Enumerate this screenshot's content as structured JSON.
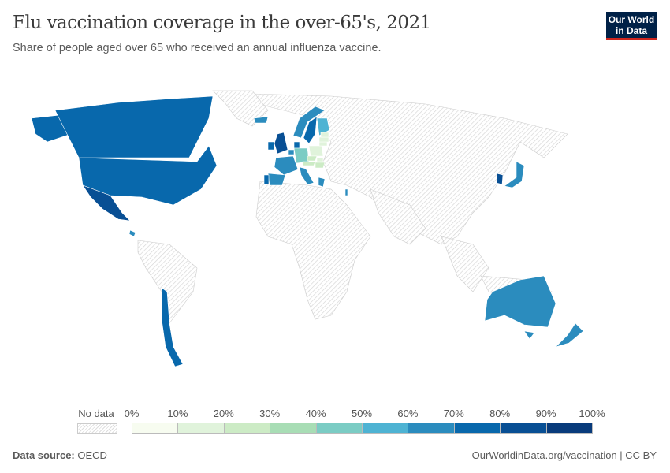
{
  "header": {
    "title": "Flu vaccination coverage in the over-65's, 2021",
    "subtitle": "Share of people aged over 65 who received an annual influenza vaccine.",
    "logo": "Our World in Data"
  },
  "legend": {
    "no_data_label": "No data",
    "ticks": [
      "0%",
      "10%",
      "20%",
      "30%",
      "40%",
      "50%",
      "60%",
      "70%",
      "80%",
      "90%",
      "100%"
    ],
    "colors": [
      "#f7fcf0",
      "#e0f3db",
      "#ccebc5",
      "#a8ddb5",
      "#7bccc4",
      "#4eb3d3",
      "#2b8cbe",
      "#0868ac",
      "#084f94",
      "#083b7b"
    ],
    "no_data_color": "#e8e8e8"
  },
  "chart_data": {
    "type": "choropleth",
    "unit": "%",
    "year": 2021,
    "values": {
      "United States": 70,
      "Canada": 70,
      "Mexico": 82,
      "Costa Rica": 65,
      "Chile": 75,
      "Australia": 65,
      "New Zealand": 67,
      "Japan": 65,
      "South Korea": 85,
      "United Kingdom": 82,
      "Ireland": 75,
      "Iceland": 60,
      "Norway": 65,
      "Sweden": 70,
      "Finland": 55,
      "Denmark": 75,
      "Germany": 45,
      "Netherlands": 65,
      "France": 60,
      "Spain": 68,
      "Portugal": 75,
      "Italy": 65,
      "Greece": 60,
      "Israel": 63,
      "Czechia": 22,
      "Slovakia": 15,
      "Hungary": 25,
      "Poland": 10,
      "Lithuania": 12,
      "Latvia": 10,
      "Estonia": 15,
      "Austria": 20
    }
  },
  "footer": {
    "source_label": "Data source:",
    "source": "OECD",
    "link": "OurWorldinData.org/vaccination | CC BY"
  }
}
